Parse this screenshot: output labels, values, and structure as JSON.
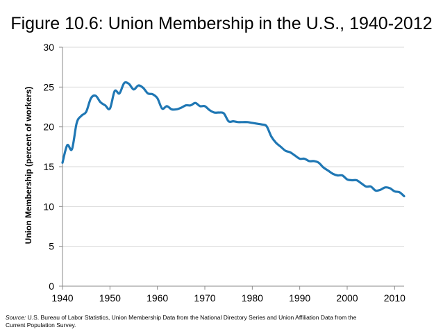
{
  "title": "Figure 10.6: Union Membership in the U.S., 1940-2012",
  "source": {
    "label": "Source:",
    "text": " U.S. Bureau of Labor Statistics, Union Membership Data from the National Directory Series and Union Affiliation Data from the Current Population Survey."
  },
  "colors": {
    "line": "#1f77b4",
    "axis": "#888888",
    "grid": "#d9d9d9"
  },
  "chart_data": {
    "type": "line",
    "title": "Figure 10.6: Union Membership in the U.S., 1940-2012",
    "xlabel": "",
    "ylabel": "Union Membership (percent of workers)",
    "xlim": [
      1940,
      2012
    ],
    "ylim": [
      0,
      30
    ],
    "x_ticks": [
      1940,
      1950,
      1960,
      1970,
      1980,
      1990,
      2000,
      2010
    ],
    "y_ticks": [
      0,
      5,
      10,
      15,
      20,
      25,
      30
    ],
    "grid": "horizontal",
    "series": [
      {
        "name": "Union Membership",
        "x": [
          1940,
          1941,
          1942,
          1943,
          1944,
          1945,
          1946,
          1947,
          1948,
          1949,
          1950,
          1951,
          1952,
          1953,
          1954,
          1955,
          1956,
          1957,
          1958,
          1959,
          1960,
          1961,
          1962,
          1963,
          1964,
          1965,
          1966,
          1967,
          1968,
          1969,
          1970,
          1971,
          1972,
          1973,
          1974,
          1975,
          1976,
          1977,
          1978,
          1979,
          1980,
          1981,
          1982,
          1983,
          1984,
          1985,
          1986,
          1987,
          1988,
          1989,
          1990,
          1991,
          1992,
          1993,
          1994,
          1995,
          1996,
          1997,
          1998,
          1999,
          2000,
          2001,
          2002,
          2003,
          2004,
          2005,
          2006,
          2007,
          2008,
          2009,
          2010,
          2011,
          2012
        ],
        "y": [
          15.5,
          17.7,
          17.2,
          20.5,
          21.4,
          21.9,
          23.6,
          23.9,
          23.1,
          22.7,
          22.3,
          24.5,
          24.2,
          25.5,
          25.4,
          24.7,
          25.2,
          24.9,
          24.2,
          24.1,
          23.6,
          22.3,
          22.6,
          22.2,
          22.2,
          22.4,
          22.7,
          22.7,
          23.0,
          22.6,
          22.6,
          22.1,
          21.8,
          21.8,
          21.7,
          20.7,
          20.7,
          20.6,
          20.6,
          20.6,
          20.5,
          20.4,
          20.3,
          20.1,
          18.8,
          18.0,
          17.5,
          17.0,
          16.8,
          16.4,
          16.0,
          16.0,
          15.7,
          15.7,
          15.5,
          14.9,
          14.5,
          14.1,
          13.9,
          13.9,
          13.4,
          13.3,
          13.3,
          12.9,
          12.5,
          12.5,
          12.0,
          12.1,
          12.4,
          12.3,
          11.9,
          11.8,
          11.3
        ]
      }
    ]
  }
}
